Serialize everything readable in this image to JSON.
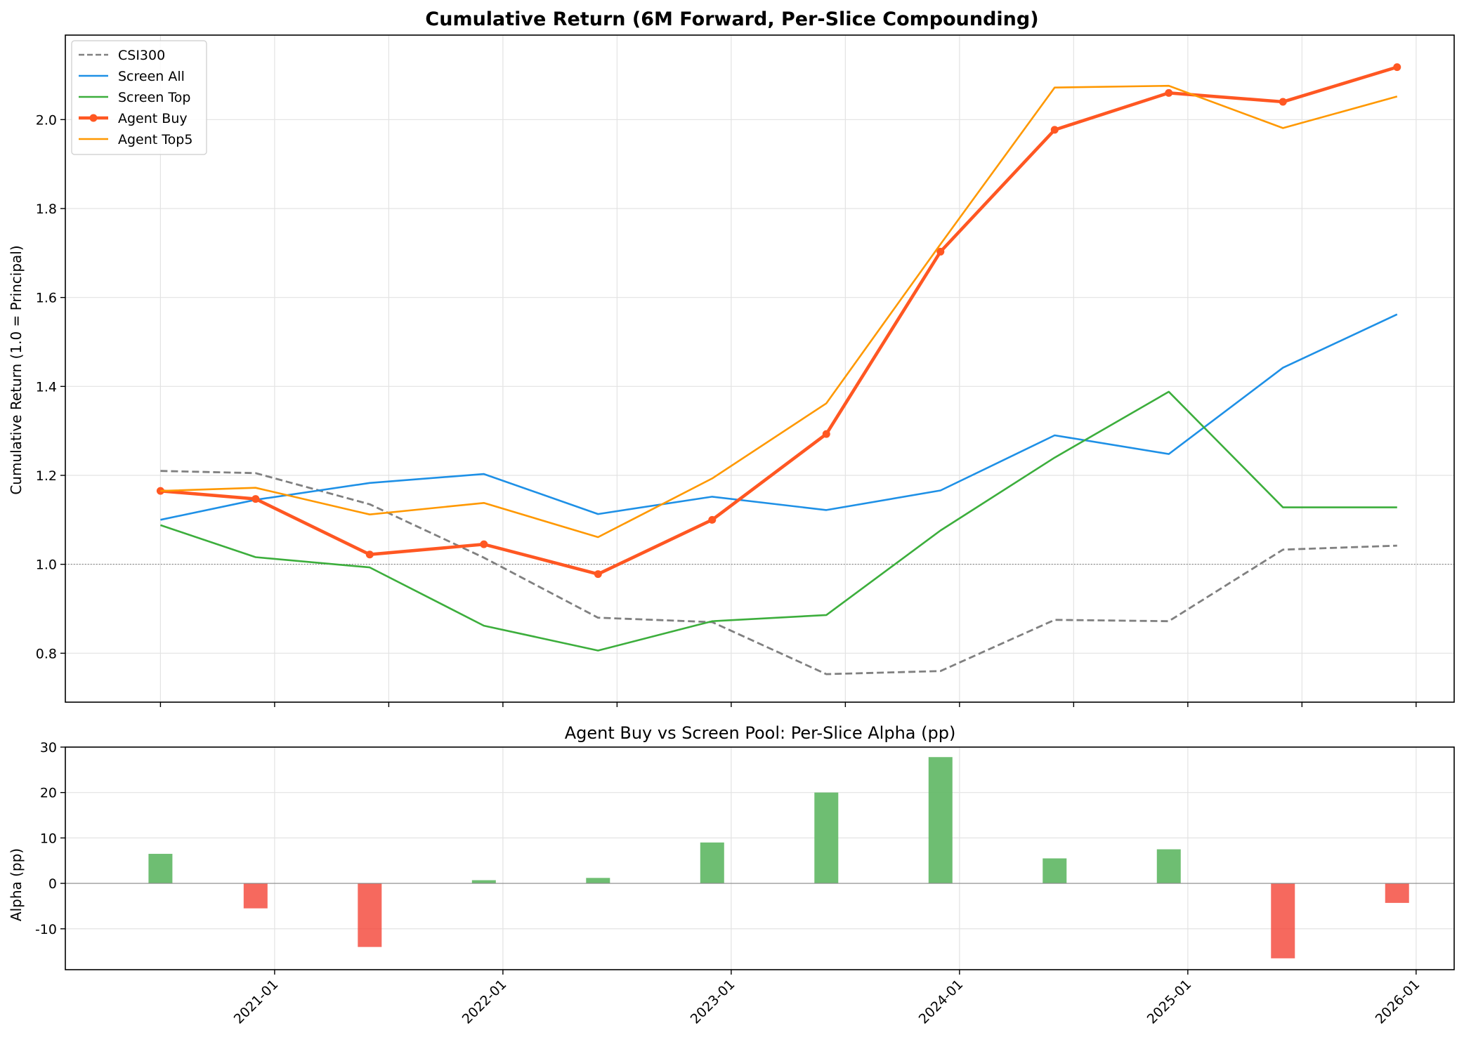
{
  "colors": {
    "csi300": "#808080",
    "screen_all": "#1e90e6",
    "screen_top": "#3cae3c",
    "agent_buy": "#ff5722",
    "agent_top5": "#ff9800",
    "alpha_pos": "#66bb6a",
    "alpha_neg": "#f44336"
  },
  "chart_data": [
    {
      "type": "line",
      "title": "Cumulative Return (6M Forward, Per-Slice Compounding)",
      "xlabel": "",
      "ylabel": "Cumulative Return (1.0 = Principal)",
      "x": [
        "2020-07",
        "2020-12",
        "2021-06",
        "2021-12",
        "2022-06",
        "2022-12",
        "2023-06",
        "2023-12",
        "2024-06",
        "2024-12",
        "2025-06",
        "2025-12"
      ],
      "xlim": [
        "2020-02",
        "2026-03"
      ],
      "ylim": [
        0.69,
        2.19
      ],
      "yticks": [
        0.8,
        1.0,
        1.2,
        1.4,
        1.6,
        1.8,
        2.0
      ],
      "ytick_labels": [
        "0.8",
        "1.0",
        "1.2",
        "1.4",
        "1.6",
        "1.8",
        "2.0"
      ],
      "reference_line": 1.0,
      "grid": true,
      "legend_position": "top-left",
      "series": [
        {
          "name": "CSI300",
          "color_key": "csi300",
          "style": "dashed",
          "values": [
            1.21,
            1.205,
            1.135,
            1.015,
            0.88,
            0.87,
            0.753,
            0.76,
            0.875,
            0.872,
            1.033,
            1.042
          ]
        },
        {
          "name": "Screen All",
          "color_key": "screen_all",
          "style": "solid",
          "values": [
            1.1,
            1.145,
            1.183,
            1.203,
            1.113,
            1.152,
            1.122,
            1.166,
            1.29,
            1.248,
            1.442,
            1.562
          ]
        },
        {
          "name": "Screen Top",
          "color_key": "screen_top",
          "style": "solid",
          "values": [
            1.088,
            1.016,
            0.993,
            0.862,
            0.806,
            0.872,
            0.886,
            1.076,
            1.24,
            1.388,
            1.128,
            1.128
          ]
        },
        {
          "name": "Agent Buy",
          "color_key": "agent_buy",
          "style": "bold-markers",
          "values": [
            1.165,
            1.147,
            1.022,
            1.045,
            0.978,
            1.1,
            1.293,
            1.703,
            1.977,
            2.06,
            2.04,
            2.118
          ]
        },
        {
          "name": "Agent Top5",
          "color_key": "agent_top5",
          "style": "solid",
          "values": [
            1.165,
            1.172,
            1.112,
            1.138,
            1.061,
            1.193,
            1.362,
            1.72,
            2.072,
            2.076,
            1.981,
            2.052
          ]
        }
      ]
    },
    {
      "type": "bar",
      "title": "Agent Buy vs Screen Pool: Per-Slice Alpha (pp)",
      "xlabel": "",
      "ylabel": "Alpha (pp)",
      "x": [
        "2020-07",
        "2020-12",
        "2021-06",
        "2021-12",
        "2022-06",
        "2022-12",
        "2023-06",
        "2023-12",
        "2024-06",
        "2024-12",
        "2025-06",
        "2025-12"
      ],
      "values": [
        6.5,
        -5.5,
        -14.0,
        0.7,
        1.2,
        9.0,
        20.0,
        27.8,
        5.5,
        7.5,
        -16.5,
        -4.3
      ],
      "ylim": [
        -19,
        30
      ],
      "yticks": [
        -10,
        0,
        10,
        20,
        30
      ],
      "ytick_labels": [
        "-10",
        "0",
        "10",
        "20",
        "30"
      ],
      "xtick_labels": [
        "2021-01",
        "2022-01",
        "2023-01",
        "2024-01",
        "2025-01",
        "2026-01"
      ],
      "grid": true
    }
  ]
}
